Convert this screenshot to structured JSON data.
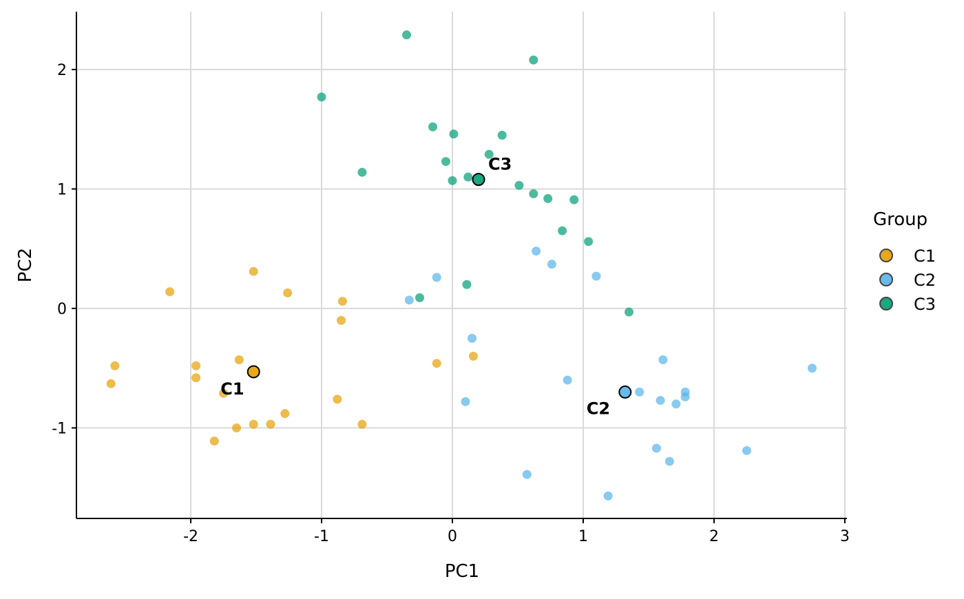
{
  "chart_data": {
    "type": "scatter",
    "title": "",
    "xlabel": "PC1",
    "ylabel": "PC2",
    "xlim": [
      -2.874,
      3.016
    ],
    "ylim": [
      -1.758,
      2.484
    ],
    "xticks": [
      -2,
      -1,
      0,
      1,
      2,
      3
    ],
    "xtick_labels": [
      "-2",
      "-1",
      "0",
      "1",
      "2",
      "3"
    ],
    "yticks": [
      -1,
      0,
      1,
      2
    ],
    "ytick_labels": [
      "-1",
      "0",
      "1",
      "2"
    ],
    "grid": true,
    "legend": {
      "title": "Group",
      "placement": "right"
    },
    "series": [
      {
        "name": "C1",
        "color": "#E69F00",
        "x": [
          -2.58,
          -2.61,
          -2.16,
          -1.96,
          -1.96,
          -1.52,
          -1.63,
          -1.75,
          -1.65,
          -1.82,
          -1.52,
          -1.39,
          -1.28,
          -1.26,
          -0.84,
          -0.85,
          -0.88,
          -0.69,
          -0.12,
          0.16
        ],
        "y": [
          -0.48,
          -0.63,
          0.14,
          -0.48,
          -0.58,
          0.31,
          -0.43,
          -0.71,
          -1.0,
          -1.11,
          -0.97,
          -0.97,
          -0.88,
          0.13,
          0.06,
          -0.1,
          -0.76,
          -0.97,
          -0.46,
          -0.4
        ],
        "centroid": {
          "label": "C1",
          "x": -1.52,
          "y": -0.53
        }
      },
      {
        "name": "C2",
        "color": "#56B4E9",
        "x": [
          -0.33,
          -0.12,
          0.15,
          0.1,
          0.64,
          0.76,
          1.1,
          0.88,
          0.57,
          1.19,
          1.43,
          1.61,
          1.59,
          1.71,
          1.78,
          1.78,
          1.56,
          1.66,
          2.25,
          2.75
        ],
        "y": [
          0.07,
          0.26,
          -0.25,
          -0.78,
          0.48,
          0.37,
          0.27,
          -0.6,
          -1.39,
          -1.57,
          -0.7,
          -0.43,
          -0.77,
          -0.8,
          -0.7,
          -0.74,
          -1.17,
          -1.28,
          -1.19,
          -0.5
        ],
        "centroid": {
          "label": "C2",
          "x": 1.32,
          "y": -0.7
        }
      },
      {
        "name": "C3",
        "color": "#009E73",
        "x": [
          -0.35,
          0.62,
          -1.0,
          -0.15,
          0.01,
          0.38,
          0.28,
          -0.05,
          -0.69,
          0.12,
          0.0,
          0.51,
          0.62,
          0.73,
          0.93,
          0.84,
          1.04,
          0.11,
          -0.25,
          1.35
        ],
        "y": [
          2.29,
          2.08,
          1.77,
          1.52,
          1.46,
          1.45,
          1.29,
          1.23,
          1.14,
          1.1,
          1.07,
          1.03,
          0.96,
          0.92,
          0.91,
          0.65,
          0.56,
          0.2,
          0.09,
          -0.03
        ],
        "centroid": {
          "label": "C3",
          "x": 0.2,
          "y": 1.08
        }
      }
    ]
  }
}
